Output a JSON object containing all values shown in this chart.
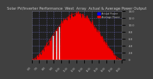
{
  "title": "Solar PV/Inverter Performance  West  Array  Actual & Average Power Output",
  "title_fontsize": 3.8,
  "bg_color": "#404040",
  "plot_bg_color": "#202020",
  "grid_color": "#6060a0",
  "bar_color": "#ee0000",
  "avg_line_color": "#cc0000",
  "legend_actual_color": "#0000ff",
  "legend_average_color": "#ff0000",
  "legend_label_actual": "Actual Power",
  "legend_label_average": "Average Power",
  "tick_color": "#cccccc",
  "title_color": "#cccccc",
  "ylim": [
    0,
    14
  ],
  "ytick_labels": [
    "0",
    "2.0",
    "4.0",
    "6.0",
    "8.0",
    "10.0",
    "12.0",
    "14.0"
  ],
  "ytick_values": [
    0,
    2,
    4,
    6,
    8,
    10,
    12,
    14
  ],
  "n_points": 144,
  "peak_kw": 13.2,
  "noise_scale": 0.6,
  "x_tick_labels": [
    "6:00",
    "7:00",
    "8:00",
    "9:00",
    "10:00",
    "11:00",
    "12:00",
    "13:00",
    "14:00",
    "15:00",
    "16:00",
    "17:00",
    "18:00"
  ]
}
